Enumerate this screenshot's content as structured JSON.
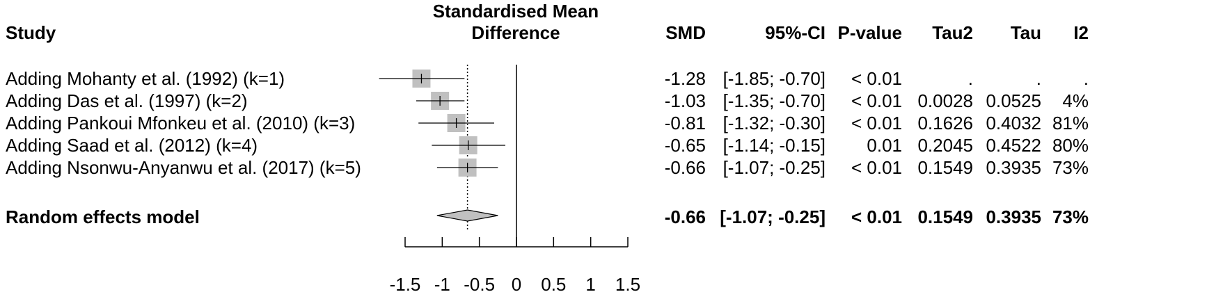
{
  "headers": {
    "study": "Study",
    "effect_line1": "Standardised Mean",
    "effect_line2": "Difference",
    "smd": "SMD",
    "ci": "95%-CI",
    "pvalue": "P-value",
    "tau2": "Tau2",
    "tau": "Tau",
    "i2": "I2"
  },
  "rows": [
    {
      "study": "Adding Mohanty et al. (1992) (k=1)",
      "smd": "-1.28",
      "ci": "[-1.85; -0.70]",
      "p": "< 0.01",
      "tau2": ".",
      "tau": ".",
      "i2": "."
    },
    {
      "study": "Adding Das et al. (1997) (k=2)",
      "smd": "-1.03",
      "ci": "[-1.35; -0.70]",
      "p": "< 0.01",
      "tau2": "0.0028",
      "tau": "0.0525",
      "i2": "4%"
    },
    {
      "study": "Adding Pankoui Mfonkeu et al. (2010) (k=3)",
      "smd": "-0.81",
      "ci": "[-1.32; -0.30]",
      "p": "< 0.01",
      "tau2": "0.1626",
      "tau": "0.4032",
      "i2": "81%"
    },
    {
      "study": "Adding Saad et al. (2012) (k=4)",
      "smd": "-0.65",
      "ci": "[-1.14; -0.15]",
      "p": "0.01",
      "tau2": "0.2045",
      "tau": "0.4522",
      "i2": "80%"
    },
    {
      "study": "Adding Nsonwu-Anyanwu et al. (2017) (k=5)",
      "smd": "-0.66",
      "ci": "[-1.07; -0.25]",
      "p": "< 0.01",
      "tau2": "0.1549",
      "tau": "0.3935",
      "i2": "73%"
    }
  ],
  "summary": {
    "study": "Random effects model",
    "smd": "-0.66",
    "ci": "[-1.07; -0.25]",
    "p": "< 0.01",
    "tau2": "0.1549",
    "tau": "0.3935",
    "i2": "73%"
  },
  "chart_data": {
    "type": "forest",
    "title": "Standardised Mean Difference",
    "xlim": [
      -1.5,
      1.5
    ],
    "ticks": [
      -1.5,
      -1,
      -0.5,
      0,
      0.5,
      1,
      1.5
    ],
    "tick_labels": [
      "-1.5",
      "-1",
      "-0.5",
      "0",
      "0.5",
      "1",
      "1.5"
    ],
    "null_line": 0,
    "pooled_estimate": -0.66,
    "pooled_ci": [
      -1.07,
      -0.25
    ],
    "points": [
      {
        "label": "Adding Mohanty et al. (1992) (k=1)",
        "estimate": -1.28,
        "lower": -1.85,
        "upper": -0.7
      },
      {
        "label": "Adding Das et al. (1997) (k=2)",
        "estimate": -1.03,
        "lower": -1.35,
        "upper": -0.7
      },
      {
        "label": "Adding Pankoui Mfonkeu et al. (2010) (k=3)",
        "estimate": -0.81,
        "lower": -1.32,
        "upper": -0.3
      },
      {
        "label": "Adding Saad et al. (2012) (k=4)",
        "estimate": -0.65,
        "lower": -1.14,
        "upper": -0.15
      },
      {
        "label": "Adding Nsonwu-Anyanwu et al. (2017) (k=5)",
        "estimate": -0.66,
        "lower": -1.07,
        "upper": -0.25
      }
    ],
    "colors": {
      "box": "#c0c0c0",
      "diamond": "#c0c0c0",
      "line": "#000000"
    }
  }
}
